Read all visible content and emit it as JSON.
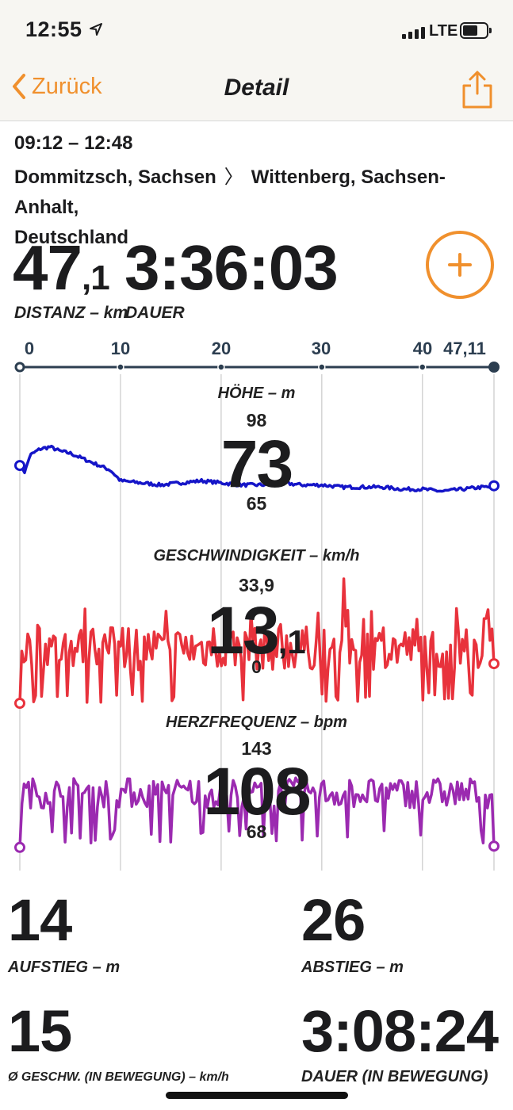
{
  "status": {
    "time": "12:55",
    "network": "LTE"
  },
  "nav": {
    "back_label": "Zurück",
    "title": "Detail"
  },
  "workout": {
    "time_range": "09:12 – 12:48",
    "from": "Dommitzsch, Sachsen",
    "to_line1": "Wittenberg, Sachsen-Anhalt,",
    "to_line2": "Deutschland",
    "distance_int": "47",
    "distance_dec": ",1",
    "distance_label": "DISTANZ – km",
    "duration": "3:36:03",
    "duration_label": "DAUER"
  },
  "axis": {
    "ticks": [
      "0",
      "10",
      "20",
      "30",
      "40",
      "47,11"
    ]
  },
  "charts": {
    "elevation": {
      "title": "HÖHE – m",
      "max": "98",
      "value": "73",
      "min": "65",
      "color": "#1515c8"
    },
    "speed": {
      "title": "GESCHWINDIGKEIT – km/h",
      "max": "33,9",
      "value_int": "13",
      "value_dec": ",1",
      "min": "0",
      "color": "#e8323c"
    },
    "heart": {
      "title": "HERZFREQUENZ – bpm",
      "max": "143",
      "value": "108",
      "min": "68",
      "color": "#9b2ab0"
    }
  },
  "chart_data": [
    {
      "type": "line",
      "title": "HÖHE – m",
      "x": [
        0,
        0.5,
        1,
        2,
        3,
        4,
        5,
        6,
        7,
        8,
        9,
        10,
        12,
        14,
        16,
        18,
        20,
        22,
        24,
        26,
        28,
        30,
        32,
        34,
        36,
        38,
        40,
        42,
        44,
        46,
        47.11
      ],
      "y": [
        83,
        79,
        87,
        90,
        91,
        89,
        88,
        86,
        84,
        82,
        80,
        75,
        74,
        73,
        74,
        75,
        74,
        73,
        73,
        74,
        73,
        73,
        72,
        72,
        72,
        71,
        71,
        70,
        71,
        72,
        72
      ],
      "ylim": [
        65,
        98
      ],
      "xlim": [
        0,
        47.11
      ]
    },
    {
      "type": "line",
      "title": "GESCHWINDIGKEIT – km/h",
      "x": [
        0,
        47.11
      ],
      "y_summary": {
        "max": 33.9,
        "avg": 13.1,
        "min": 0
      },
      "ylim": [
        0,
        33.9
      ],
      "xlim": [
        0,
        47.11
      ]
    },
    {
      "type": "line",
      "title": "HERZFREQUENZ – bpm",
      "x": [
        0,
        47.11
      ],
      "y_summary": {
        "max": 143,
        "avg": 108,
        "min": 68
      },
      "ylim": [
        68,
        143
      ],
      "xlim": [
        0,
        47.11
      ]
    }
  ],
  "stats": {
    "ascent": {
      "value": "14",
      "label": "AUFSTIEG – m"
    },
    "descent": {
      "value": "26",
      "label": "ABSTIEG – m"
    },
    "avg_speed": {
      "value": "15",
      "label": "Ø GESCHW. (IN BEWEGUNG) – km/h"
    },
    "moving_duration": {
      "value": "3:08:24",
      "label": "DAUER (IN BEWEGUNG)"
    }
  },
  "colors": {
    "accent": "#f0902d",
    "axis": "#2c3e50"
  }
}
